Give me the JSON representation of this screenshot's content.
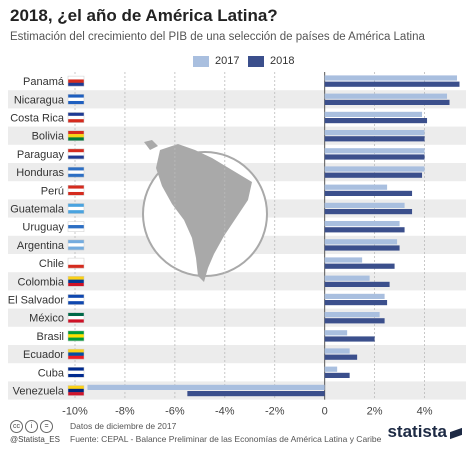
{
  "header": {
    "title": "2018, ¿el año de América Latina?",
    "subtitle": "Estimación del crecimiento del PIB de una selección de países de América Latina"
  },
  "colors": {
    "series_2017": "#a9bfdf",
    "series_2018": "#3b4f8c",
    "row_alt": "#ececec",
    "map": "#a9a9a9"
  },
  "chart_data": {
    "type": "bar",
    "orientation": "horizontal",
    "categories": [
      "Panamá",
      "Nicaragua",
      "Costa Rica",
      "Bolivia",
      "Paraguay",
      "Honduras",
      "Perú",
      "Guatemala",
      "Uruguay",
      "Argentina",
      "Chile",
      "Colombia",
      "El Salvador",
      "México",
      "Brasil",
      "Ecuador",
      "Cuba",
      "Venezuela"
    ],
    "series": [
      {
        "name": "2017",
        "values": [
          5.3,
          4.9,
          3.9,
          4.0,
          4.0,
          4.0,
          2.5,
          3.2,
          3.0,
          2.9,
          1.5,
          1.8,
          2.4,
          2.2,
          0.9,
          1.0,
          0.5,
          -9.5
        ]
      },
      {
        "name": "2018",
        "values": [
          5.4,
          5.0,
          4.1,
          4.0,
          4.0,
          3.9,
          3.5,
          3.5,
          3.2,
          3.0,
          2.8,
          2.6,
          2.5,
          2.4,
          2.0,
          1.3,
          1.0,
          -5.5
        ]
      }
    ],
    "xlim": [
      -10,
      5.5
    ],
    "x_ticks": [
      "-10%",
      "-8%",
      "-6%",
      "-4%",
      "-2%",
      "0",
      "2%",
      "4%"
    ],
    "tick_values": [
      -10,
      -8,
      -6,
      -4,
      -2,
      0,
      2,
      4
    ],
    "legend": "top-center",
    "grid": true
  },
  "footer": {
    "cc_icons": [
      "cc",
      "i",
      "="
    ],
    "handle": "@Statista_ES",
    "source_line1": "Datos de diciembre de 2017",
    "source_line2": "Fuente: CEPAL - Balance Preliminar de las Economías de América Latina y Caribe",
    "brand": "statista"
  }
}
